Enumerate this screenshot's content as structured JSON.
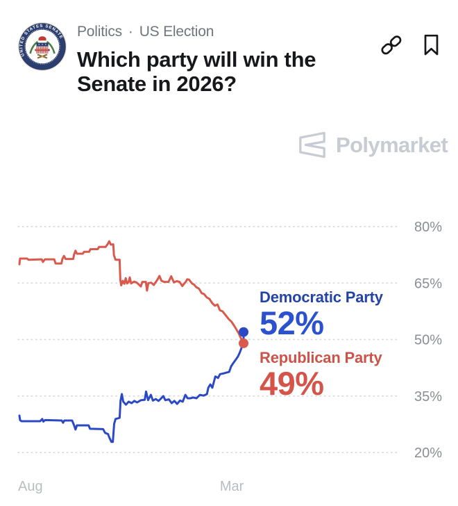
{
  "header": {
    "category": "Politics",
    "separator": "·",
    "subcategory": "US Election",
    "title": "Which party will win the Senate in 2026?",
    "logo_ring_text": "UNITED STATES SENATE"
  },
  "brand": {
    "name": "Polymarket",
    "color": "#c7cbd2"
  },
  "chart_data": {
    "type": "line",
    "title": "Which party will win the Senate in 2026?",
    "grid": "horizontal-dotted",
    "legend_position": "inline-right",
    "y_axis": {
      "range": [
        20,
        80
      ],
      "unit": "%",
      "ticks": [
        {
          "label": "80%",
          "value": 80
        },
        {
          "label": "65%",
          "value": 65
        },
        {
          "label": "50%",
          "value": 50
        },
        {
          "label": "35%",
          "value": 35
        },
        {
          "label": "20%",
          "value": 20
        }
      ]
    },
    "x_axis": {
      "ticks": [
        {
          "label": "Aug",
          "pos": 0,
          "align": "start"
        },
        {
          "label": "Mar",
          "pos": 94.5,
          "align": "middle"
        }
      ]
    },
    "series": [
      {
        "name": "Democratic Party",
        "value": 52,
        "display_value": "52%",
        "color": "#2c49c5",
        "label_color": "#2443a6",
        "value_color": "#2b51cf",
        "points": [
          [
            0.6,
            29.8
          ],
          [
            0.9,
            28.6
          ],
          [
            1.5,
            28.3
          ],
          [
            9.8,
            28.3
          ],
          [
            10.7,
            28.9
          ],
          [
            11.2,
            28.2
          ],
          [
            11.9,
            28.6
          ],
          [
            19.3,
            28.5
          ],
          [
            19.9,
            27.9
          ],
          [
            20.5,
            28.5
          ],
          [
            23.9,
            28.5
          ],
          [
            24.8,
            27.2
          ],
          [
            25.4,
            26.1
          ],
          [
            26,
            27.2
          ],
          [
            31.2,
            27.2
          ],
          [
            31.8,
            26.3
          ],
          [
            37.6,
            26.2
          ],
          [
            38.5,
            25.2
          ],
          [
            39.8,
            24.9
          ],
          [
            40.4,
            23.9
          ],
          [
            41.3,
            22.8
          ],
          [
            41.9,
            22.8
          ],
          [
            42.5,
            27.6
          ],
          [
            43.1,
            28.9
          ],
          [
            44.9,
            29.2
          ],
          [
            45.3,
            33.7
          ],
          [
            45.9,
            35.5
          ],
          [
            46.5,
            33.5
          ],
          [
            47.7,
            32.7
          ],
          [
            48.9,
            33.5
          ],
          [
            50.2,
            33.1
          ],
          [
            51.4,
            33.7
          ],
          [
            52.6,
            33.3
          ],
          [
            54.4,
            33.9
          ],
          [
            56,
            34
          ],
          [
            56.6,
            36.2
          ],
          [
            57.5,
            33.9
          ],
          [
            58.7,
            35.3
          ],
          [
            59.6,
            33.8
          ],
          [
            60.9,
            34.2
          ],
          [
            62.1,
            33.7
          ],
          [
            63.3,
            34.4
          ],
          [
            64.2,
            35
          ],
          [
            65.1,
            33.9
          ],
          [
            66.7,
            34.1
          ],
          [
            67.9,
            33.1
          ],
          [
            69.1,
            33.7
          ],
          [
            70.3,
            32.9
          ],
          [
            71.6,
            33.8
          ],
          [
            72.8,
            33.5
          ],
          [
            74,
            35.3
          ],
          [
            74.9,
            34.4
          ],
          [
            76.2,
            34.4
          ],
          [
            77.4,
            34.6
          ],
          [
            78.9,
            34.4
          ],
          [
            80.4,
            35.3
          ],
          [
            82,
            35.1
          ],
          [
            83.5,
            35.5
          ],
          [
            84.1,
            37.2
          ],
          [
            85,
            38.1
          ],
          [
            85.9,
            37.2
          ],
          [
            87.2,
            40.2
          ],
          [
            88.4,
            39.8
          ],
          [
            89.3,
            40.8
          ],
          [
            90.8,
            41
          ],
          [
            92,
            41.2
          ],
          [
            93.3,
            41.4
          ],
          [
            94.2,
            42.9
          ],
          [
            95.1,
            43.7
          ],
          [
            96.3,
            44.7
          ],
          [
            97.2,
            45.5
          ],
          [
            97.9,
            46.4
          ],
          [
            98.5,
            47.3
          ],
          [
            99.1,
            48.4
          ],
          [
            99.7,
            50
          ],
          [
            99.7,
            52
          ]
        ]
      },
      {
        "name": "Republican Party",
        "value": 49,
        "display_value": "49%",
        "color": "#d95a4d",
        "label_color": "#cd5349",
        "value_color": "#d5544a",
        "points": [
          [
            0.6,
            70
          ],
          [
            0.9,
            71.5
          ],
          [
            4,
            71.5
          ],
          [
            4.6,
            71.2
          ],
          [
            10.5,
            71.3
          ],
          [
            11,
            70.6
          ],
          [
            11.9,
            71.3
          ],
          [
            16,
            71.3
          ],
          [
            16.6,
            70.2
          ],
          [
            19.2,
            70.2
          ],
          [
            19.6,
            71.4
          ],
          [
            20.3,
            72.2
          ],
          [
            21,
            71.4
          ],
          [
            24.4,
            71.4
          ],
          [
            24.8,
            72.6
          ],
          [
            25.4,
            73.6
          ],
          [
            26,
            72.8
          ],
          [
            28.6,
            72.8
          ],
          [
            29.2,
            73.3
          ],
          [
            31.4,
            73.3
          ],
          [
            32,
            74
          ],
          [
            35.2,
            74
          ],
          [
            35.8,
            74.6
          ],
          [
            38.7,
            74.6
          ],
          [
            39.7,
            75.4
          ],
          [
            40.3,
            76.1
          ],
          [
            41,
            75.2
          ],
          [
            42.1,
            75.3
          ],
          [
            42.4,
            72.4
          ],
          [
            43.1,
            71.2
          ],
          [
            44.9,
            71.2
          ],
          [
            45.2,
            65.8
          ],
          [
            45.6,
            64.4
          ],
          [
            46.3,
            65.6
          ],
          [
            47,
            64.8
          ],
          [
            47.6,
            66.3
          ],
          [
            48.2,
            64.9
          ],
          [
            48.9,
            65.3
          ],
          [
            49.4,
            66.5
          ],
          [
            50,
            64.9
          ],
          [
            51.3,
            65.4
          ],
          [
            52.5,
            65.1
          ],
          [
            54.3,
            64.1
          ],
          [
            54.9,
            65.3
          ],
          [
            56.5,
            65.3
          ],
          [
            57,
            63
          ],
          [
            57.6,
            65
          ],
          [
            58.9,
            65.1
          ],
          [
            60,
            64.5
          ],
          [
            61.6,
            65.9
          ],
          [
            62.5,
            66.9
          ],
          [
            63.4,
            65.6
          ],
          [
            64.6,
            65.3
          ],
          [
            66.5,
            65.3
          ],
          [
            67.7,
            66.8
          ],
          [
            68.9,
            65.2
          ],
          [
            70.2,
            65.5
          ],
          [
            71.4,
            65.3
          ],
          [
            72.6,
            64.2
          ],
          [
            74.2,
            65.4
          ],
          [
            74.8,
            66
          ],
          [
            75.6,
            65.9
          ],
          [
            76.9,
            64.9
          ],
          [
            77.8,
            64.6
          ],
          [
            78.8,
            63.9
          ],
          [
            80,
            63.5
          ],
          [
            81.2,
            62.3
          ],
          [
            82.2,
            62.1
          ],
          [
            83.4,
            61.2
          ],
          [
            84.6,
            60.8
          ],
          [
            85.8,
            59.7
          ],
          [
            87,
            59
          ],
          [
            88.2,
            59.3
          ],
          [
            89.2,
            57.8
          ],
          [
            90.4,
            57.5
          ],
          [
            91.6,
            56.6
          ],
          [
            93.2,
            55.4
          ],
          [
            94.4,
            54.7
          ],
          [
            95.6,
            53.6
          ],
          [
            96.5,
            52.7
          ],
          [
            97.5,
            51.7
          ],
          [
            98.4,
            50.5
          ],
          [
            99.2,
            49.6
          ],
          [
            99.7,
            49
          ]
        ]
      }
    ]
  }
}
